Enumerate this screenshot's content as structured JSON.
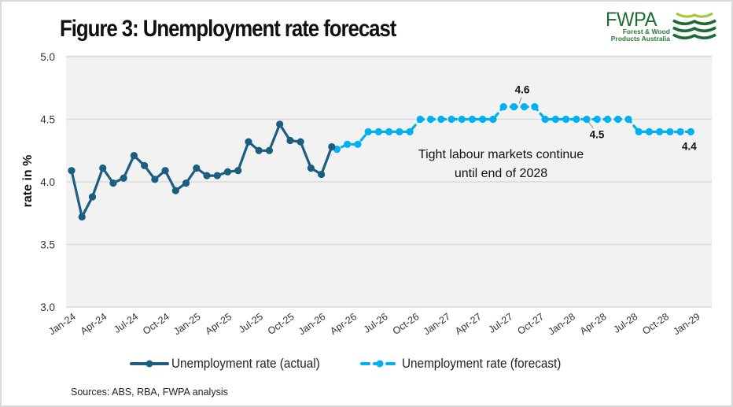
{
  "title": "Figure 3: Unemployment rate forecast",
  "logo": {
    "main": "FWPA",
    "sub_line1": "Forest & Wood",
    "sub_line2": "Products Australia"
  },
  "sources": "Sources: ABS, RBA, FWPA analysis",
  "colors": {
    "actual": "#1b5e80",
    "forecast": "#00b0f0",
    "plot_bg": "#f2f2f2",
    "grid": "#d9d9d9"
  },
  "chart_data": {
    "type": "line",
    "title": "Figure 3: Unemployment rate forecast",
    "xlabel": "",
    "ylabel": "rate in %",
    "ylim": [
      3.0,
      5.0
    ],
    "yticks": [
      "3.0",
      "3.5",
      "4.0",
      "4.5",
      "5.0"
    ],
    "ytick_values": [
      3.0,
      3.5,
      4.0,
      4.5,
      5.0
    ],
    "xtick_labels": [
      "Jan-24",
      "Apr-24",
      "Jul-24",
      "Oct-24",
      "Jan-25",
      "Apr-25",
      "Jul-25",
      "Oct-25",
      "Jan-26",
      "Apr-26",
      "Jul-26",
      "Oct-26",
      "Jan-27",
      "Apr-27",
      "Jul-27",
      "Oct-27",
      "Jan-28",
      "Apr-28",
      "Jul-28",
      "Oct-28",
      "Jan-29"
    ],
    "x_unit": "months since Jan-24",
    "xlim": [
      0,
      60
    ],
    "grid": true,
    "legend_position": "bottom",
    "series": [
      {
        "name": "Unemployment rate (actual)",
        "style": "solid",
        "x": [
          0,
          1,
          2,
          3,
          4,
          5,
          6,
          7,
          8,
          9,
          10,
          11,
          12,
          13,
          14,
          15,
          16,
          17,
          18,
          19,
          20,
          21,
          22,
          23,
          24,
          25
        ],
        "values": [
          4.09,
          3.72,
          3.88,
          4.11,
          3.99,
          4.03,
          4.21,
          4.13,
          4.02,
          4.09,
          3.93,
          3.99,
          4.11,
          4.05,
          4.05,
          4.08,
          4.09,
          4.32,
          4.25,
          4.25,
          4.46,
          4.33,
          4.32,
          4.11,
          4.06,
          4.28
        ]
      },
      {
        "name": "Unemployment rate (forecast)",
        "style": "dashed",
        "x": [
          25.5,
          26.5,
          27.5,
          28.5,
          29.5,
          30.5,
          31.5,
          32.5,
          33.5,
          34.5,
          35.5,
          36.5,
          37.5,
          38.5,
          39.5,
          40.5,
          41.5,
          42.5,
          43.5,
          44.5,
          45.5,
          46.5,
          47.5,
          48.5,
          49.5,
          50.5,
          51.5,
          52.5,
          53.5,
          54.5,
          55.5,
          56.5,
          57.5,
          58.5,
          59.5
        ],
        "values": [
          4.26,
          4.3,
          4.3,
          4.4,
          4.4,
          4.4,
          4.4,
          4.4,
          4.5,
          4.5,
          4.5,
          4.5,
          4.5,
          4.5,
          4.5,
          4.5,
          4.6,
          4.6,
          4.6,
          4.6,
          4.5,
          4.5,
          4.5,
          4.5,
          4.5,
          4.5,
          4.5,
          4.5,
          4.5,
          4.4,
          4.4,
          4.4,
          4.4,
          4.4,
          4.4
        ]
      }
    ],
    "annotations": [
      {
        "text": "4.6",
        "x": 43.0,
        "y": 4.6
      },
      {
        "text": "4.5",
        "x": 49.5,
        "y": 4.5
      },
      {
        "text": "4.4",
        "x": 59.5,
        "y": 4.4
      },
      {
        "text": "Tight labour markets continue",
        "line": 1
      },
      {
        "text": "until end of 2028",
        "line": 2
      }
    ]
  }
}
